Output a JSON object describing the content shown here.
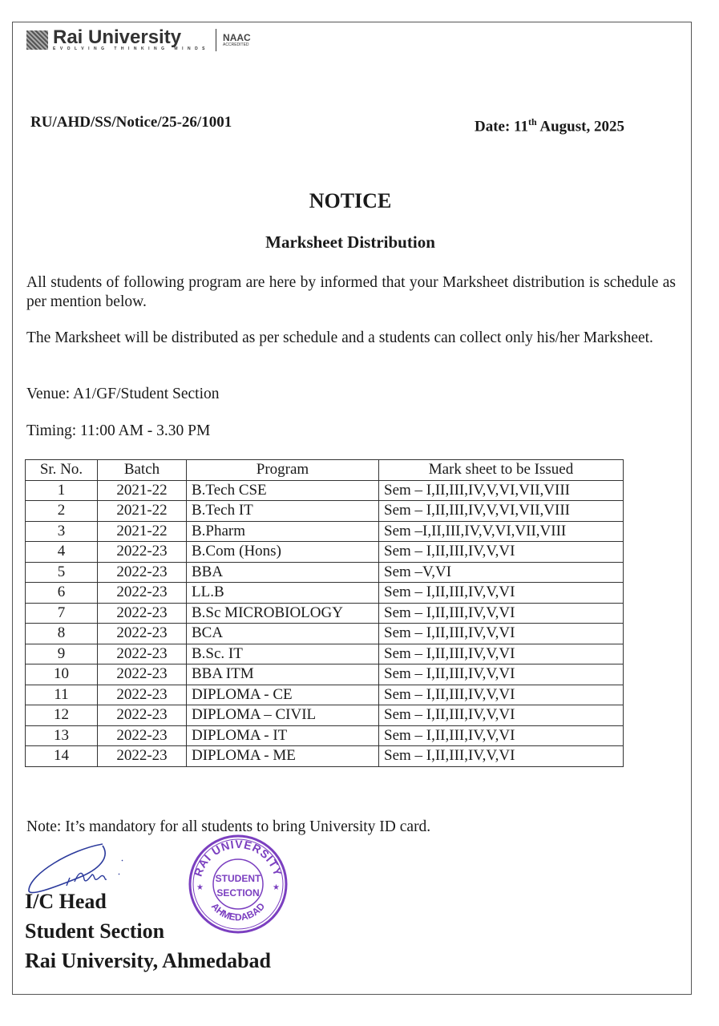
{
  "header": {
    "brand": "Rai University",
    "tagline": "EVOLVING THINKING MINDS",
    "naac": "NAAC",
    "naac_sub": "ACCREDITED"
  },
  "reference": "RU/AHD/SS/Notice/25-26/1001",
  "date": {
    "prefix": "Date: 11",
    "sup": "th",
    "suffix": " August, 2025"
  },
  "title": "NOTICE",
  "subtitle": "Marksheet Distribution",
  "paragraphs": [
    "All students of following program are here by informed that your Marksheet distribution is schedule as per mention below.",
    "The Marksheet will be distributed as per schedule and a students can collect only his/her Marksheet."
  ],
  "venue": "Venue: A1/GF/Student Section",
  "timing": "Timing: 11:00 AM - 3.30 PM",
  "table": {
    "headers": [
      "Sr. No.",
      "Batch",
      "Program",
      "Mark sheet to be Issued"
    ],
    "rows": [
      [
        "1",
        "2021-22",
        "B.Tech CSE",
        "Sem – I,II,III,IV,V,VI,VII,VIII"
      ],
      [
        "2",
        "2021-22",
        "B.Tech IT",
        "Sem – I,II,III,IV,V,VI,VII,VIII"
      ],
      [
        "3",
        "2021-22",
        "B.Pharm",
        "Sem –I,II,III,IV,V,VI,VII,VIII"
      ],
      [
        "4",
        "2022-23",
        "B.Com (Hons)",
        "Sem – I,II,III,IV,V,VI"
      ],
      [
        "5",
        "2022-23",
        "BBA",
        "Sem –V,VI"
      ],
      [
        "6",
        "2022-23",
        "LL.B",
        "Sem – I,II,III,IV,V,VI"
      ],
      [
        "7",
        "2022-23",
        "B.Sc MICROBIOLOGY",
        "Sem – I,II,III,IV,V,VI"
      ],
      [
        "8",
        "2022-23",
        "BCA",
        "Sem – I,II,III,IV,V,VI"
      ],
      [
        "9",
        "2022-23",
        "B.Sc. IT",
        "Sem – I,II,III,IV,V,VI"
      ],
      [
        "10",
        "2022-23",
        "BBA ITM",
        "Sem – I,II,III,IV,V,VI"
      ],
      [
        "11",
        "2022-23",
        "DIPLOMA - CE",
        "Sem – I,II,III,IV,V,VI"
      ],
      [
        "12",
        "2022-23",
        "DIPLOMA – CIVIL",
        "Sem – I,II,III,IV,V,VI"
      ],
      [
        "13",
        "2022-23",
        "DIPLOMA - IT",
        "Sem – I,II,III,IV,V,VI"
      ],
      [
        "14",
        "2022-23",
        "DIPLOMA - ME",
        "Sem – I,II,III,IV,V,VI"
      ]
    ]
  },
  "note": "Note: It’s mandatory for all students to bring University ID card.",
  "signature": {
    "lines": [
      "I/C Head",
      "Student Section",
      "Rai University, Ahmedabad"
    ],
    "stamp_outer_top": "RAI UNIVERSITY",
    "stamp_outer_bottom": "AHMEDABAD",
    "stamp_inner": [
      "STUDENT",
      "SECTION"
    ],
    "stamp_color": "#7b3fc0",
    "ink_color": "#2b3a9c"
  }
}
